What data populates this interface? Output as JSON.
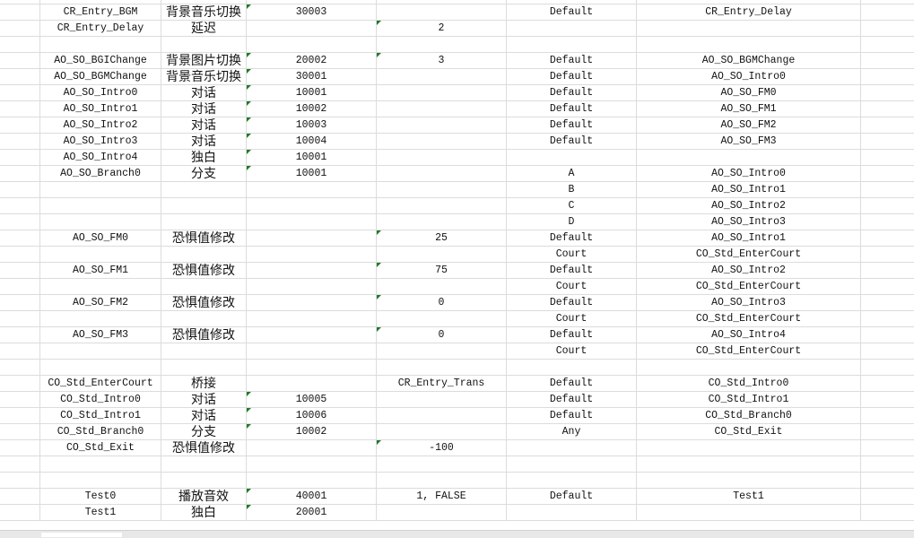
{
  "sheet": {
    "marker_color": "#1f7a2a",
    "rows": [
      {
        "a": "",
        "b": "",
        "c": "",
        "d": "",
        "e": "",
        "f": "",
        "tc": false,
        "td": false
      },
      {
        "a": "CR_Entry_BGM",
        "b": "背景音乐切换",
        "c": "30003",
        "d": "",
        "e": "Default",
        "f": "CR_Entry_Delay",
        "tc": true,
        "td": false
      },
      {
        "a": "CR_Entry_Delay",
        "b": "延迟",
        "c": "",
        "d": "2",
        "e": "",
        "f": "",
        "tc": false,
        "td": true
      },
      {
        "a": "",
        "b": "",
        "c": "",
        "d": "",
        "e": "",
        "f": "",
        "tc": false,
        "td": false
      },
      {
        "a": "AO_SO_BGIChange",
        "b": "背景图片切换",
        "c": "20002",
        "d": "3",
        "e": "Default",
        "f": "AO_SO_BGMChange",
        "tc": true,
        "td": true
      },
      {
        "a": "AO_SO_BGMChange",
        "b": "背景音乐切换",
        "c": "30001",
        "d": "",
        "e": "Default",
        "f": "AO_SO_Intro0",
        "tc": true,
        "td": false
      },
      {
        "a": "AO_SO_Intro0",
        "b": "对话",
        "c": "10001",
        "d": "",
        "e": "Default",
        "f": "AO_SO_FM0",
        "tc": true,
        "td": false
      },
      {
        "a": "AO_SO_Intro1",
        "b": "对话",
        "c": "10002",
        "d": "",
        "e": "Default",
        "f": "AO_SO_FM1",
        "tc": true,
        "td": false
      },
      {
        "a": "AO_SO_Intro2",
        "b": "对话",
        "c": "10003",
        "d": "",
        "e": "Default",
        "f": "AO_SO_FM2",
        "tc": true,
        "td": false
      },
      {
        "a": "AO_SO_Intro3",
        "b": "对话",
        "c": "10004",
        "d": "",
        "e": "Default",
        "f": "AO_SO_FM3",
        "tc": true,
        "td": false
      },
      {
        "a": "AO_SO_Intro4",
        "b": "独白",
        "c": "10001",
        "d": "",
        "e": "",
        "f": "",
        "tc": true,
        "td": false
      },
      {
        "a": "AO_SO_Branch0",
        "b": "分支",
        "c": "10001",
        "d": "",
        "e": "A",
        "f": "AO_SO_Intro0",
        "tc": true,
        "td": false
      },
      {
        "a": "",
        "b": "",
        "c": "",
        "d": "",
        "e": "B",
        "f": "AO_SO_Intro1",
        "tc": false,
        "td": false
      },
      {
        "a": "",
        "b": "",
        "c": "",
        "d": "",
        "e": "C",
        "f": "AO_SO_Intro2",
        "tc": false,
        "td": false
      },
      {
        "a": "",
        "b": "",
        "c": "",
        "d": "",
        "e": "D",
        "f": "AO_SO_Intro3",
        "tc": false,
        "td": false
      },
      {
        "a": "AO_SO_FM0",
        "b": "恐惧值修改",
        "c": "",
        "d": "25",
        "e": "Default",
        "f": "AO_SO_Intro1",
        "tc": false,
        "td": true
      },
      {
        "a": "",
        "b": "",
        "c": "",
        "d": "",
        "e": "Court",
        "f": "CO_Std_EnterCourt",
        "tc": false,
        "td": false
      },
      {
        "a": "AO_SO_FM1",
        "b": "恐惧值修改",
        "c": "",
        "d": "75",
        "e": "Default",
        "f": "AO_SO_Intro2",
        "tc": false,
        "td": true
      },
      {
        "a": "",
        "b": "",
        "c": "",
        "d": "",
        "e": "Court",
        "f": "CO_Std_EnterCourt",
        "tc": false,
        "td": false
      },
      {
        "a": "AO_SO_FM2",
        "b": "恐惧值修改",
        "c": "",
        "d": "0",
        "e": "Default",
        "f": "AO_SO_Intro3",
        "tc": false,
        "td": true
      },
      {
        "a": "",
        "b": "",
        "c": "",
        "d": "",
        "e": "Court",
        "f": "CO_Std_EnterCourt",
        "tc": false,
        "td": false
      },
      {
        "a": "AO_SO_FM3",
        "b": "恐惧值修改",
        "c": "",
        "d": "0",
        "e": "Default",
        "f": "AO_SO_Intro4",
        "tc": false,
        "td": true
      },
      {
        "a": "",
        "b": "",
        "c": "",
        "d": "",
        "e": "Court",
        "f": "CO_Std_EnterCourt",
        "tc": false,
        "td": false
      },
      {
        "a": "",
        "b": "",
        "c": "",
        "d": "",
        "e": "",
        "f": "",
        "tc": false,
        "td": false
      },
      {
        "a": "CO_Std_EnterCourt",
        "b": "桥接",
        "c": "",
        "d": "CR_Entry_Trans",
        "e": "Default",
        "f": "CO_Std_Intro0",
        "tc": false,
        "td": false
      },
      {
        "a": "CO_Std_Intro0",
        "b": "对话",
        "c": "10005",
        "d": "",
        "e": "Default",
        "f": "CO_Std_Intro1",
        "tc": true,
        "td": false
      },
      {
        "a": "CO_Std_Intro1",
        "b": "对话",
        "c": "10006",
        "d": "",
        "e": "Default",
        "f": "CO_Std_Branch0",
        "tc": true,
        "td": false
      },
      {
        "a": "CO_Std_Branch0",
        "b": "分支",
        "c": "10002",
        "d": "",
        "e": "Any",
        "f": "CO_Std_Exit",
        "tc": true,
        "td": false
      },
      {
        "a": "CO_Std_Exit",
        "b": "恐惧值修改",
        "c": "",
        "d": "-100",
        "e": "",
        "f": "",
        "tc": false,
        "td": true
      },
      {
        "a": "",
        "b": "",
        "c": "",
        "d": "",
        "e": "",
        "f": "",
        "tc": false,
        "td": false
      },
      {
        "a": "",
        "b": "",
        "c": "",
        "d": "",
        "e": "",
        "f": "",
        "tc": false,
        "td": false
      },
      {
        "a": "Test0",
        "b": "播放音效",
        "c": "40001",
        "d": "1, FALSE",
        "e": "Default",
        "f": "Test1",
        "tc": true,
        "td": false
      },
      {
        "a": "Test1",
        "b": "独白",
        "c": "20001",
        "d": "",
        "e": "",
        "f": "",
        "tc": true,
        "td": false
      }
    ]
  }
}
